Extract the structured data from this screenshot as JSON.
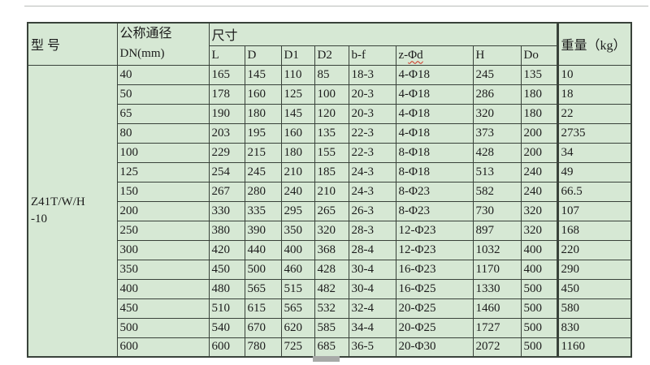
{
  "page": {
    "background": "#ffffff",
    "table_fill": "#d6e8d4",
    "grid_color": "#39423a",
    "text_color": "#1c1c1c",
    "squiggle_color": "#d03020",
    "top_rule_color": "#b9bdb9",
    "artifact_color": "#a7aaa7"
  },
  "table": {
    "model_header": "型  号",
    "dn_header": {
      "line1": "公称通径",
      "line2": "DN(mm)"
    },
    "size_header": "尺寸",
    "weight_header": "重量（kg）",
    "dim_columns": [
      {
        "name": "l",
        "label": "L"
      },
      {
        "name": "d",
        "label": "D"
      },
      {
        "name": "d1",
        "label": "D1"
      },
      {
        "name": "d2",
        "label": "D2"
      },
      {
        "name": "b-f",
        "label": "b-f"
      },
      {
        "name": "z-phi-d",
        "label": "z-Φd",
        "squiggle_from": 2
      },
      {
        "name": "h",
        "label": "H"
      },
      {
        "name": "do",
        "label": "Do"
      }
    ],
    "model_cell": {
      "line1": "Z41T/W/H",
      "line2": "-10"
    },
    "rows": [
      [
        "40",
        "165",
        "145",
        "110",
        "85",
        "18-3",
        "4-Φ18",
        "245",
        "135",
        "10"
      ],
      [
        "50",
        "178",
        "160",
        "125",
        "100",
        "20-3",
        "4-Φ18",
        "286",
        "180",
        "18"
      ],
      [
        "65",
        "190",
        "180",
        "145",
        "120",
        "20-3",
        "4-Φ18",
        "320",
        "180",
        "22"
      ],
      [
        "80",
        "203",
        "195",
        "160",
        "135",
        "22-3",
        "4-Φ18",
        "373",
        "200",
        "2735"
      ],
      [
        "100",
        "229",
        "215",
        "180",
        "155",
        "22-3",
        "8-Φ18",
        "428",
        "200",
        "34"
      ],
      [
        "125",
        "254",
        "245",
        "210",
        "185",
        "24-3",
        "8-Φ18",
        "513",
        "240",
        "49"
      ],
      [
        "150",
        "267",
        "280",
        "240",
        "210",
        "24-3",
        "8-Φ23",
        "582",
        "240",
        "66.5"
      ],
      [
        "200",
        "330",
        "335",
        "295",
        "265",
        "26-3",
        "8-Φ23",
        "730",
        "320",
        "107"
      ],
      [
        "250",
        "380",
        "390",
        "350",
        "320",
        "28-3",
        "12-Φ23",
        "897",
        "320",
        "168"
      ],
      [
        "300",
        "420",
        "440",
        "400",
        "368",
        "28-4",
        "12-Φ23",
        "1032",
        "400",
        "220"
      ],
      [
        "350",
        "450",
        "500",
        "460",
        "428",
        "30-4",
        "16-Φ23",
        "1170",
        "400",
        "290"
      ],
      [
        "400",
        "480",
        "565",
        "515",
        "482",
        "30-4",
        "16-Φ25",
        "1330",
        "500",
        "450"
      ],
      [
        "450",
        "510",
        "615",
        "565",
        "532",
        "32-4",
        "20-Φ25",
        "1460",
        "500",
        "580"
      ],
      [
        "500",
        "540",
        "670",
        "620",
        "585",
        "34-4",
        "20-Φ25",
        "1727",
        "500",
        "830"
      ],
      [
        "600",
        "600",
        "780",
        "725",
        "685",
        "36-5",
        "20-Φ30",
        "2072",
        "500",
        "1160"
      ]
    ]
  }
}
